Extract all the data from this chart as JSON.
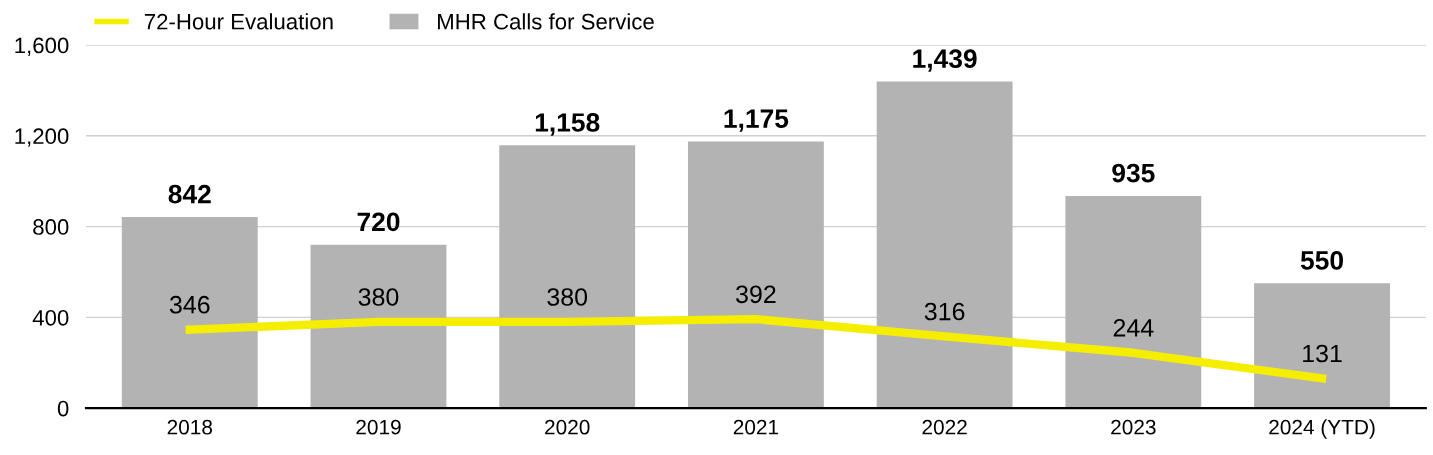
{
  "chart_data": {
    "type": "bar",
    "categories": [
      "2018",
      "2019",
      "2020",
      "2021",
      "2022",
      "2023",
      "2024 (YTD)"
    ],
    "series": [
      {
        "name": "72-Hour Evaluation",
        "type": "line",
        "color": "#f5ee00",
        "values": [
          346,
          380,
          380,
          392,
          316,
          244,
          131
        ],
        "value_labels": [
          "346",
          "380",
          "380",
          "392",
          "316",
          "244",
          "131"
        ]
      },
      {
        "name": "MHR Calls for Service",
        "color": "#b3b3b3",
        "values": [
          842,
          720,
          1158,
          1175,
          1439,
          935,
          550
        ],
        "value_labels": [
          "842",
          "720",
          "1,158",
          "1,175",
          "1,439",
          "935",
          "550"
        ]
      }
    ],
    "ylim": [
      0,
      1600
    ],
    "yticks": [
      0,
      {
        "value": 400,
        "label": "400"
      },
      {
        "value": 800,
        "label": "800"
      },
      {
        "value": 1200,
        "label": "1,200"
      },
      {
        "value": 1600,
        "label": "1,600"
      }
    ],
    "grid": "y",
    "legend": "top left",
    "marker": "none",
    "line_style": "solid"
  }
}
